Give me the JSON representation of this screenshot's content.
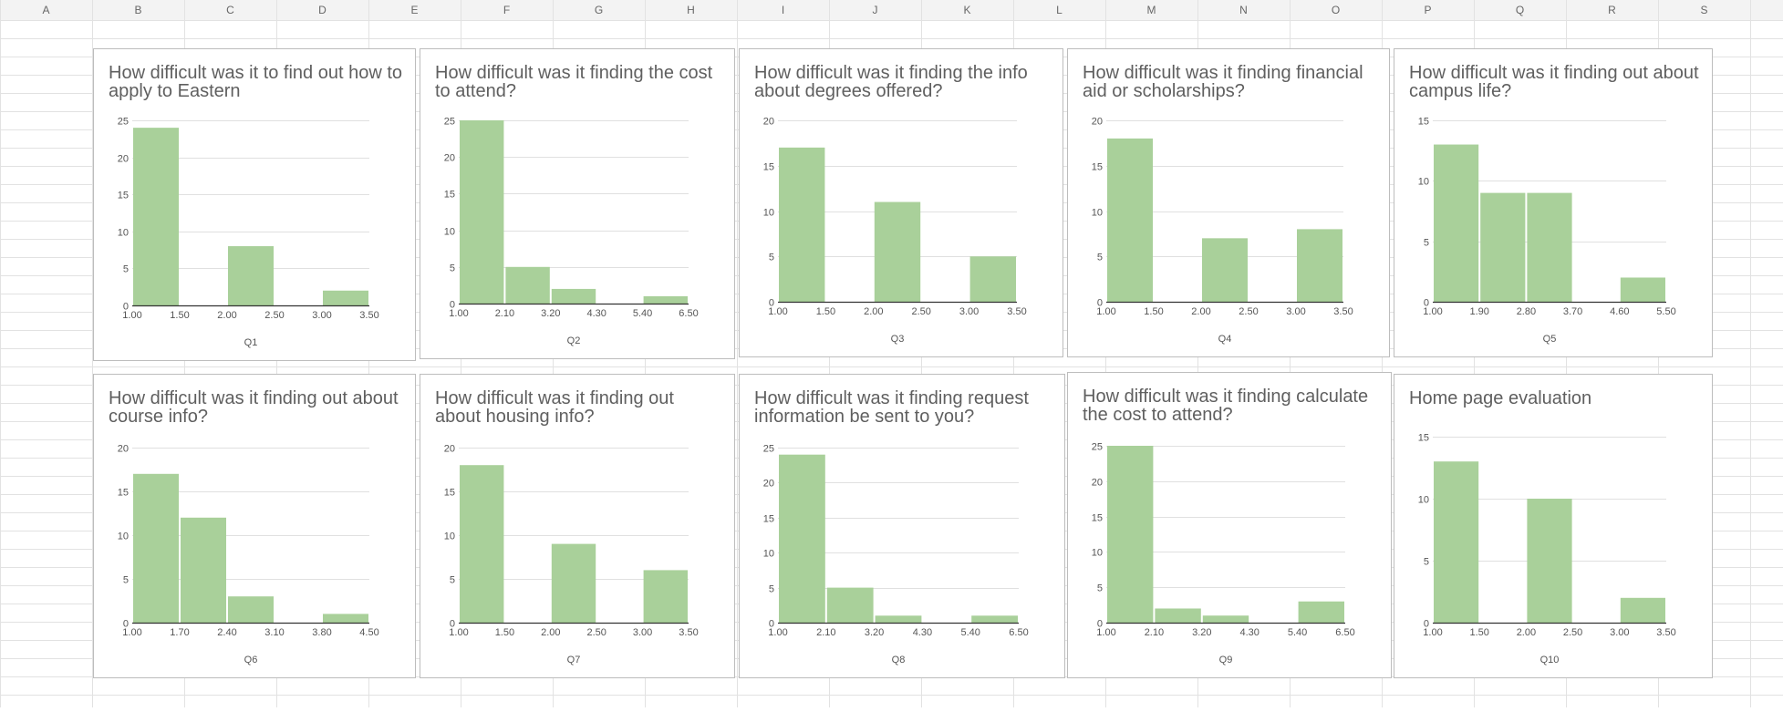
{
  "sheet": {
    "columns": [
      "A",
      "B",
      "C",
      "D",
      "E",
      "F",
      "G",
      "H",
      "I",
      "J",
      "K",
      "L",
      "M",
      "N",
      "O",
      "P",
      "Q",
      "R",
      "S"
    ],
    "colors": {
      "bar": "#a9d09a",
      "grid": "#e0e0e0",
      "axis": "#333333",
      "text": "#555555",
      "header_bg": "#f3f3f3",
      "cell_border": "#e2e2e2"
    }
  },
  "chart_data": [
    {
      "type": "bar",
      "title": "How difficult was it to find out how to apply to Eastern",
      "xlabel": "Q1",
      "ylabel": "",
      "ylim": [
        0,
        25
      ],
      "yticks": [
        0,
        5,
        10,
        15,
        20,
        25
      ],
      "xlim": [
        1.0,
        3.5
      ],
      "xticks": [
        "1.00",
        "1.50",
        "2.00",
        "2.50",
        "3.00",
        "3.50"
      ],
      "bins": [
        {
          "x0": 1.0,
          "x1": 1.5,
          "value": 24
        },
        {
          "x0": 2.0,
          "x1": 2.5,
          "value": 8
        },
        {
          "x0": 3.0,
          "x1": 3.5,
          "value": 2
        }
      ]
    },
    {
      "type": "bar",
      "title": "How difficult was it finding the cost to attend?",
      "xlabel": "Q2",
      "ylabel": "",
      "ylim": [
        0,
        25
      ],
      "yticks": [
        0,
        5,
        10,
        15,
        20,
        25
      ],
      "xlim": [
        1.0,
        6.5
      ],
      "xticks": [
        "1.00",
        "2.10",
        "3.20",
        "4.30",
        "5.40",
        "6.50"
      ],
      "bins": [
        {
          "x0": 1.0,
          "x1": 2.1,
          "value": 25
        },
        {
          "x0": 2.1,
          "x1": 3.2,
          "value": 5
        },
        {
          "x0": 3.2,
          "x1": 4.3,
          "value": 2
        },
        {
          "x0": 5.4,
          "x1": 6.5,
          "value": 1
        }
      ]
    },
    {
      "type": "bar",
      "title": "How difficult was it finding the info about degrees offered?",
      "xlabel": "Q3",
      "ylabel": "",
      "ylim": [
        0,
        20
      ],
      "yticks": [
        0,
        5,
        10,
        15,
        20
      ],
      "xlim": [
        1.0,
        3.5
      ],
      "xticks": [
        "1.00",
        "1.50",
        "2.00",
        "2.50",
        "3.00",
        "3.50"
      ],
      "bins": [
        {
          "x0": 1.0,
          "x1": 1.5,
          "value": 17
        },
        {
          "x0": 2.0,
          "x1": 2.5,
          "value": 11
        },
        {
          "x0": 3.0,
          "x1": 3.5,
          "value": 5
        }
      ]
    },
    {
      "type": "bar",
      "title": "How difficult was it finding financial aid or scholarships?",
      "xlabel": "Q4",
      "ylabel": "",
      "ylim": [
        0,
        20
      ],
      "yticks": [
        0,
        5,
        10,
        15,
        20
      ],
      "xlim": [
        1.0,
        3.5
      ],
      "xticks": [
        "1.00",
        "1.50",
        "2.00",
        "2.50",
        "3.00",
        "3.50"
      ],
      "bins": [
        {
          "x0": 1.0,
          "x1": 1.5,
          "value": 18
        },
        {
          "x0": 2.0,
          "x1": 2.5,
          "value": 7
        },
        {
          "x0": 3.0,
          "x1": 3.5,
          "value": 8
        }
      ]
    },
    {
      "type": "bar",
      "title": "How difficult was it finding out about campus life?",
      "xlabel": "Q5",
      "ylabel": "",
      "ylim": [
        0,
        15
      ],
      "yticks": [
        0,
        5,
        10,
        15
      ],
      "xlim": [
        1.0,
        5.5
      ],
      "xticks": [
        "1.00",
        "1.90",
        "2.80",
        "3.70",
        "4.60",
        "5.50"
      ],
      "bins": [
        {
          "x0": 1.0,
          "x1": 1.9,
          "value": 13
        },
        {
          "x0": 1.9,
          "x1": 2.8,
          "value": 9
        },
        {
          "x0": 2.8,
          "x1": 3.7,
          "value": 9
        },
        {
          "x0": 4.6,
          "x1": 5.5,
          "value": 2
        }
      ]
    },
    {
      "type": "bar",
      "title": "How difficult was it finding out about course info?",
      "xlabel": "Q6",
      "ylabel": "",
      "ylim": [
        0,
        20
      ],
      "yticks": [
        0,
        5,
        10,
        15,
        20
      ],
      "xlim": [
        1.0,
        4.5
      ],
      "xticks": [
        "1.00",
        "1.70",
        "2.40",
        "3.10",
        "3.80",
        "4.50"
      ],
      "bins": [
        {
          "x0": 1.0,
          "x1": 1.7,
          "value": 17
        },
        {
          "x0": 1.7,
          "x1": 2.4,
          "value": 12
        },
        {
          "x0": 2.4,
          "x1": 3.1,
          "value": 3
        },
        {
          "x0": 3.8,
          "x1": 4.5,
          "value": 1
        }
      ]
    },
    {
      "type": "bar",
      "title": "How difficult was it finding out about housing info?",
      "xlabel": "Q7",
      "ylabel": "",
      "ylim": [
        0,
        20
      ],
      "yticks": [
        0,
        5,
        10,
        15,
        20
      ],
      "xlim": [
        1.0,
        3.5
      ],
      "xticks": [
        "1.00",
        "1.50",
        "2.00",
        "2.50",
        "3.00",
        "3.50"
      ],
      "bins": [
        {
          "x0": 1.0,
          "x1": 1.5,
          "value": 18
        },
        {
          "x0": 2.0,
          "x1": 2.5,
          "value": 9
        },
        {
          "x0": 3.0,
          "x1": 3.5,
          "value": 6
        }
      ]
    },
    {
      "type": "bar",
      "title": "How difficult was it finding request information be sent to you?",
      "xlabel": "Q8",
      "ylabel": "",
      "ylim": [
        0,
        25
      ],
      "yticks": [
        0,
        5,
        10,
        15,
        20,
        25
      ],
      "xlim": [
        1.0,
        6.5
      ],
      "xticks": [
        "1.00",
        "2.10",
        "3.20",
        "4.30",
        "5.40",
        "6.50"
      ],
      "bins": [
        {
          "x0": 1.0,
          "x1": 2.1,
          "value": 24
        },
        {
          "x0": 2.1,
          "x1": 3.2,
          "value": 5
        },
        {
          "x0": 3.2,
          "x1": 4.3,
          "value": 1
        },
        {
          "x0": 5.4,
          "x1": 6.5,
          "value": 1
        }
      ]
    },
    {
      "type": "bar",
      "title": "How difficult was it finding calculate the cost to attend?",
      "xlabel": "Q9",
      "ylabel": "",
      "ylim": [
        0,
        25
      ],
      "yticks": [
        0,
        5,
        10,
        15,
        20,
        25
      ],
      "xlim": [
        1.0,
        6.5
      ],
      "xticks": [
        "1.00",
        "2.10",
        "3.20",
        "4.30",
        "5.40",
        "6.50"
      ],
      "bins": [
        {
          "x0": 1.0,
          "x1": 2.1,
          "value": 25
        },
        {
          "x0": 2.1,
          "x1": 3.2,
          "value": 2
        },
        {
          "x0": 3.2,
          "x1": 4.3,
          "value": 1
        },
        {
          "x0": 5.4,
          "x1": 6.5,
          "value": 3
        }
      ]
    },
    {
      "type": "bar",
      "title": "Home page evaluation",
      "xlabel": "Q10",
      "ylabel": "",
      "ylim": [
        0,
        15
      ],
      "yticks": [
        0,
        5,
        10,
        15
      ],
      "xlim": [
        1.0,
        3.5
      ],
      "xticks": [
        "1.00",
        "1.50",
        "2.00",
        "2.50",
        "3.00",
        "3.50"
      ],
      "bins": [
        {
          "x0": 1.0,
          "x1": 1.5,
          "value": 13
        },
        {
          "x0": 2.0,
          "x1": 2.5,
          "value": 10
        },
        {
          "x0": 3.0,
          "x1": 3.5,
          "value": 2
        }
      ]
    }
  ]
}
